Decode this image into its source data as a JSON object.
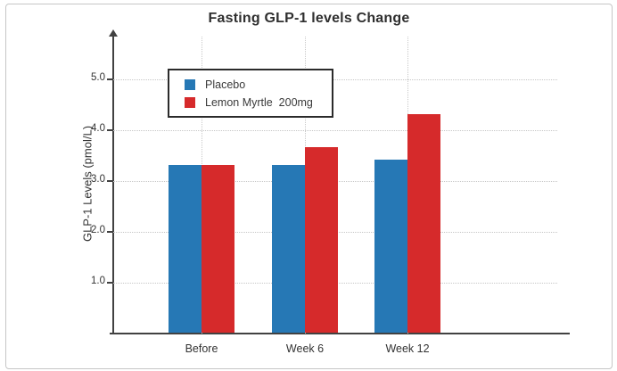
{
  "chart_data": {
    "type": "bar",
    "title": "Fasting GLP-1 levels Change",
    "ylabel": "GLP-1 Levels (pmol/L)",
    "xlabel": "",
    "categories": [
      "Before",
      "Week 6",
      "Week 12"
    ],
    "series": [
      {
        "name": "Placebo",
        "color": "#2678b5",
        "values": [
          3.3,
          3.3,
          3.4
        ]
      },
      {
        "name": "Lemon Myrtle  200mg",
        "color": "#d62a2b",
        "values": [
          3.3,
          3.65,
          4.3
        ]
      }
    ],
    "yticks": [
      1.0,
      2.0,
      3.0,
      4.0,
      5.0
    ],
    "ytick_labels": [
      "1.0",
      "2.0",
      "3.0",
      "4.0",
      "5.0"
    ],
    "ylim": [
      0,
      5.8
    ],
    "grid": true,
    "legend_position": "upper left",
    "colors": {
      "axis": "#414141",
      "grid": "#c6c6c6",
      "text": "#333333",
      "frame_border": "#c6c6c6",
      "background": "#ffffff"
    }
  }
}
